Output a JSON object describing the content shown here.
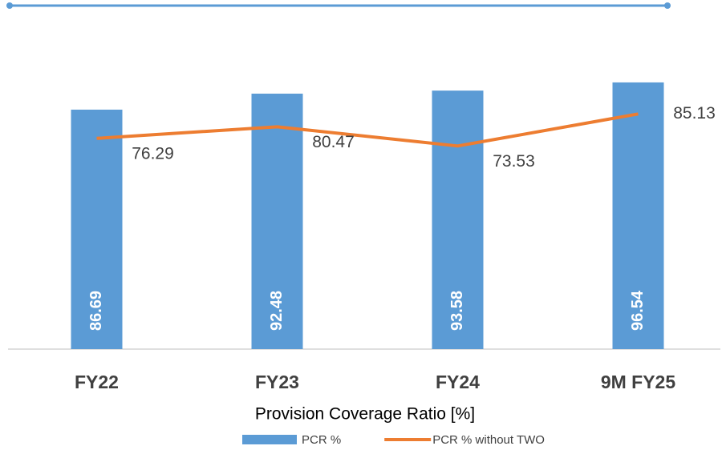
{
  "chart_data": {
    "type": "bar_line",
    "x_label": "Provision Coverage Ratio [%]",
    "categories": [
      "FY22",
      "FY23",
      "FY24",
      "9M FY25"
    ],
    "series": [
      {
        "name": "PCR %",
        "type": "bar",
        "color": "#5b9bd5",
        "values": [
          86.69,
          92.48,
          93.58,
          96.54
        ]
      },
      {
        "name": "PCR % without TWO",
        "type": "line",
        "color": "#ed7d31",
        "values": [
          76.29,
          80.47,
          73.53,
          85.13
        ]
      }
    ],
    "ylim": [
      0,
      100
    ],
    "legend": "bottom"
  }
}
